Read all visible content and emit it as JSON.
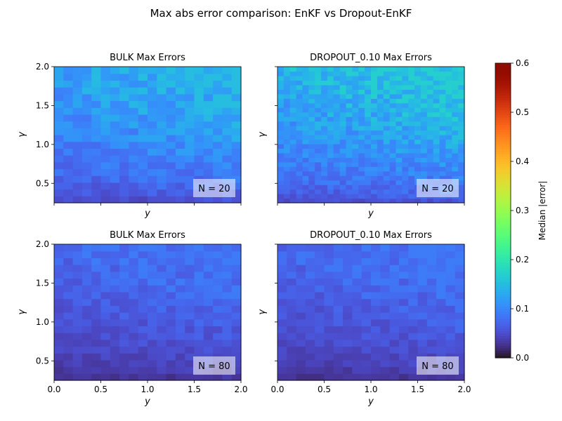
{
  "figure": {
    "title": "Max abs error comparison: EnKF vs Dropout-EnKF"
  },
  "colorbar": {
    "label": "Median |error|",
    "colormap": "turbo",
    "vmin": 0.0,
    "vmax": 0.6,
    "ticks": [
      "0.0",
      "0.1",
      "0.2",
      "0.3",
      "0.4",
      "0.5",
      "0.6"
    ]
  },
  "chart_data": [
    {
      "type": "heatmap",
      "title": "BULK Max Errors",
      "xlabel": "y",
      "ylabel": "γ",
      "annotation": "N = 20",
      "xlim": [
        0.0,
        2.0
      ],
      "ylim": [
        0.25,
        2.0
      ],
      "grid_cols": 20,
      "grid_rows": 20,
      "value_range": [
        0.02,
        0.15
      ],
      "xticks": [],
      "yticks": [
        "0.5",
        "1.0",
        "1.5",
        "2.0"
      ]
    },
    {
      "type": "heatmap",
      "title": "DROPOUT_0.10 Max Errors",
      "xlabel": "y",
      "ylabel": "γ",
      "annotation": "N = 20",
      "xlim": [
        0.0,
        2.0
      ],
      "ylim": [
        0.25,
        2.0
      ],
      "grid_cols": 30,
      "grid_rows": 30,
      "value_range": [
        0.02,
        0.17
      ],
      "xticks": [],
      "yticks": []
    },
    {
      "type": "heatmap",
      "title": "BULK Max Errors",
      "xlabel": "y",
      "ylabel": "γ",
      "annotation": "N = 80",
      "xlim": [
        0.0,
        2.0
      ],
      "ylim": [
        0.25,
        2.0
      ],
      "grid_cols": 20,
      "grid_rows": 20,
      "value_range": [
        0.01,
        0.09
      ],
      "xticks": [
        "0.0",
        "0.5",
        "1.0",
        "1.5",
        "2.0"
      ],
      "yticks": [
        "0.5",
        "1.0",
        "1.5",
        "2.0"
      ]
    },
    {
      "type": "heatmap",
      "title": "DROPOUT_0.10 Max Errors",
      "xlabel": "y",
      "ylabel": "γ",
      "annotation": "N = 80",
      "xlim": [
        0.0,
        2.0
      ],
      "ylim": [
        0.25,
        2.0
      ],
      "grid_cols": 20,
      "grid_rows": 20,
      "value_range": [
        0.01,
        0.09
      ],
      "xticks": [
        "0.0",
        "0.5",
        "1.0",
        "1.5",
        "2.0"
      ],
      "yticks": []
    }
  ]
}
